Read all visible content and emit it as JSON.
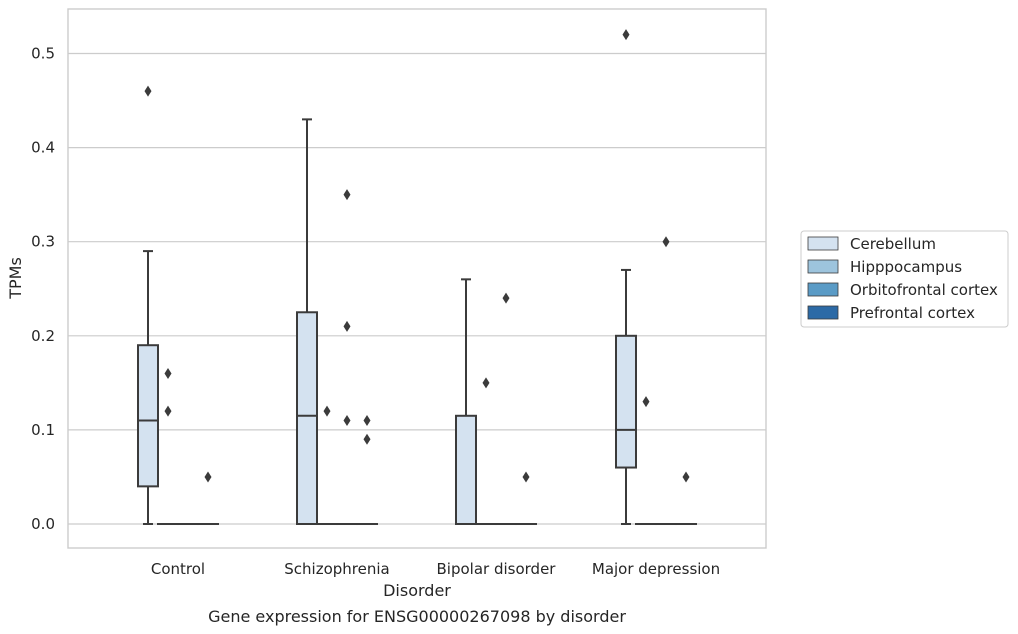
{
  "chart_data": {
    "type": "box",
    "title": "Gene expression for ENSG00000267098 by disorder",
    "xlabel": "Disorder",
    "ylabel": "TPMs",
    "ylim": [
      -0.026,
      0.547
    ],
    "yticks": [
      0.0,
      0.1,
      0.2,
      0.3,
      0.4,
      0.5
    ],
    "ytick_labels": [
      "0.0",
      "0.1",
      "0.2",
      "0.3",
      "0.4",
      "0.5"
    ],
    "grid": true,
    "legend_position": "right",
    "categories": [
      "Control",
      "Schizophrenia",
      "Bipolar disorder",
      "Major depression"
    ],
    "series": [
      {
        "name": "Cerebellum",
        "color": "#d4e2f0",
        "boxes": [
          {
            "category": "Control",
            "whisker_low": 0.0,
            "q1": 0.04,
            "median": 0.11,
            "q3": 0.19,
            "whisker_high": 0.29,
            "outliers": [
              0.46
            ]
          },
          {
            "category": "Schizophrenia",
            "whisker_low": 0.0,
            "q1": 0.0,
            "median": 0.115,
            "q3": 0.225,
            "whisker_high": 0.43,
            "outliers": []
          },
          {
            "category": "Bipolar disorder",
            "whisker_low": 0.0,
            "q1": 0.0,
            "median": 0.0,
            "q3": 0.115,
            "whisker_high": 0.26,
            "outliers": []
          },
          {
            "category": "Major depression",
            "whisker_low": 0.0,
            "q1": 0.06,
            "median": 0.1,
            "q3": 0.2,
            "whisker_high": 0.27,
            "outliers": [
              0.52
            ]
          }
        ]
      },
      {
        "name": "Hipppocampus",
        "color": "#9dc4dd",
        "boxes": [
          {
            "category": "Control",
            "whisker_low": 0.0,
            "q1": 0.0,
            "median": 0.0,
            "q3": 0.0,
            "whisker_high": 0.0,
            "outliers": [
              0.12,
              0.16
            ]
          },
          {
            "category": "Schizophrenia",
            "whisker_low": 0.0,
            "q1": 0.0,
            "median": 0.0,
            "q3": 0.0,
            "whisker_high": 0.0,
            "outliers": [
              0.12
            ]
          },
          {
            "category": "Bipolar disorder",
            "whisker_low": 0.0,
            "q1": 0.0,
            "median": 0.0,
            "q3": 0.0,
            "whisker_high": 0.0,
            "outliers": [
              0.15
            ]
          },
          {
            "category": "Major depression",
            "whisker_low": 0.0,
            "q1": 0.0,
            "median": 0.0,
            "q3": 0.0,
            "whisker_high": 0.0,
            "outliers": [
              0.13
            ]
          }
        ]
      },
      {
        "name": "Orbitofrontal cortex",
        "color": "#5a9bc6",
        "boxes": [
          {
            "category": "Control",
            "whisker_low": 0.0,
            "q1": 0.0,
            "median": 0.0,
            "q3": 0.0,
            "whisker_high": 0.0,
            "outliers": []
          },
          {
            "category": "Schizophrenia",
            "whisker_low": 0.0,
            "q1": 0.0,
            "median": 0.0,
            "q3": 0.0,
            "whisker_high": 0.0,
            "outliers": [
              0.11,
              0.21,
              0.35
            ]
          },
          {
            "category": "Bipolar disorder",
            "whisker_low": 0.0,
            "q1": 0.0,
            "median": 0.0,
            "q3": 0.0,
            "whisker_high": 0.0,
            "outliers": [
              0.24
            ]
          },
          {
            "category": "Major depression",
            "whisker_low": 0.0,
            "q1": 0.0,
            "median": 0.0,
            "q3": 0.0,
            "whisker_high": 0.0,
            "outliers": [
              0.3
            ]
          }
        ]
      },
      {
        "name": "Prefrontal cortex",
        "color": "#2c6aa6",
        "boxes": [
          {
            "category": "Control",
            "whisker_low": 0.0,
            "q1": 0.0,
            "median": 0.0,
            "q3": 0.0,
            "whisker_high": 0.0,
            "outliers": [
              0.05
            ]
          },
          {
            "category": "Schizophrenia",
            "whisker_low": 0.0,
            "q1": 0.0,
            "median": 0.0,
            "q3": 0.0,
            "whisker_high": 0.0,
            "outliers": [
              0.09,
              0.11
            ]
          },
          {
            "category": "Bipolar disorder",
            "whisker_low": 0.0,
            "q1": 0.0,
            "median": 0.0,
            "q3": 0.0,
            "whisker_high": 0.0,
            "outliers": [
              0.05
            ]
          },
          {
            "category": "Major depression",
            "whisker_low": 0.0,
            "q1": 0.0,
            "median": 0.0,
            "q3": 0.0,
            "whisker_high": 0.0,
            "outliers": [
              0.05
            ]
          }
        ]
      }
    ],
    "colors": {
      "grid": "#cccccc",
      "frame": "#cccccc",
      "box_edge": "#3b3b3b",
      "outlier": "#3b3b3b",
      "legend_border": "#cccccc"
    }
  }
}
